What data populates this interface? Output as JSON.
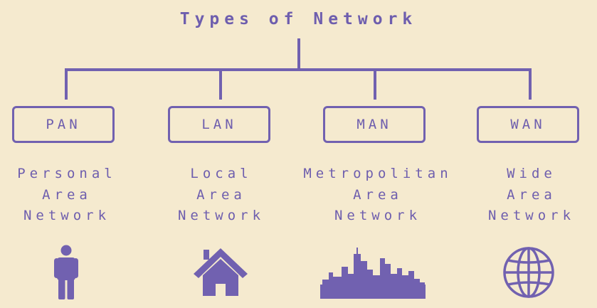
{
  "title": "Types of Network",
  "accent_color": "#7161b0",
  "background_color": "#f5eacf",
  "networks": [
    {
      "abbr": "PAN",
      "lines": [
        "Personal",
        "Area",
        "Network"
      ],
      "icon": "person-icon"
    },
    {
      "abbr": "LAN",
      "lines": [
        "Local",
        "Area",
        "Network"
      ],
      "icon": "house-icon"
    },
    {
      "abbr": "MAN",
      "lines": [
        "Metropolitan",
        "Area",
        "Network"
      ],
      "icon": "city-skyline-icon"
    },
    {
      "abbr": "WAN",
      "lines": [
        "Wide",
        "Area",
        "Network"
      ],
      "icon": "globe-icon"
    }
  ]
}
